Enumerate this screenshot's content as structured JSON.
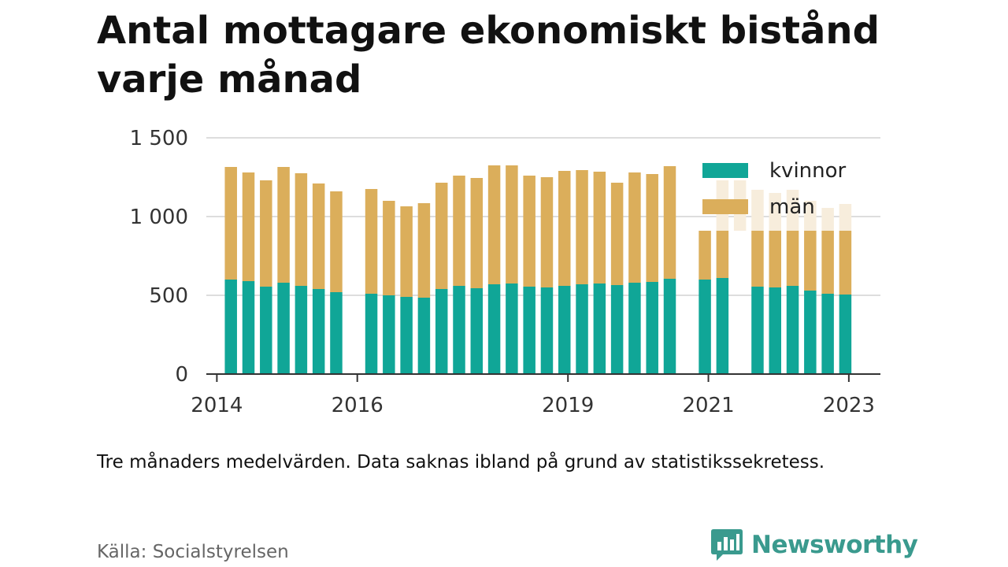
{
  "title": "Antal mottagare ekonomiskt bistånd varje månad",
  "note": "Tre månaders medelvärden. Data saknas ibland på grund av statistikssekretess.",
  "source": "Källa: Socialstyrelsen",
  "logo": {
    "text": "Newsworthy",
    "icon": "newsworthy-chat-bars-icon"
  },
  "colors": {
    "kvinnor": "#10a697",
    "man": "#dbae5b",
    "man_faded": "#f7eddc",
    "grid": "#dddddd",
    "axis": "#333333",
    "logo": "#3a9a8e"
  },
  "chart_data": {
    "type": "bar",
    "stacked": true,
    "xlabel": "",
    "ylabel": "",
    "ylim": [
      0,
      1500
    ],
    "yticks": [
      0,
      500,
      1000,
      1500
    ],
    "ytick_labels": [
      "0",
      "500",
      "1 000",
      "1 500"
    ],
    "xticks": [
      {
        "label": "2014",
        "x": 2014.0
      },
      {
        "label": "2016",
        "x": 2016.0
      },
      {
        "label": "2019",
        "x": 2019.0
      },
      {
        "label": "2021",
        "x": 2021.0
      },
      {
        "label": "2023",
        "x": 2023.0
      }
    ],
    "xlim": [
      2013.85,
      2023.45
    ],
    "x": [
      2014.2,
      2014.45,
      2014.7,
      2014.95,
      2015.2,
      2015.45,
      2015.7,
      2016.2,
      2016.45,
      2016.7,
      2016.95,
      2017.2,
      2017.45,
      2017.7,
      2017.95,
      2018.2,
      2018.45,
      2018.7,
      2018.95,
      2019.2,
      2019.45,
      2019.7,
      2019.95,
      2020.2,
      2020.45,
      2020.7,
      2020.95,
      2021.2,
      2021.45,
      2021.7,
      2021.95,
      2022.2,
      2022.45,
      2022.7,
      2022.95
    ],
    "series": [
      {
        "name": "kvinnor",
        "values": [
          600,
          590,
          555,
          580,
          560,
          540,
          520,
          510,
          500,
          490,
          485,
          540,
          560,
          545,
          570,
          575,
          555,
          550,
          560,
          570,
          575,
          565,
          580,
          585,
          605,
          null,
          600,
          610,
          null,
          555,
          550,
          560,
          530,
          510,
          505
        ]
      },
      {
        "name": "män",
        "values": [
          715,
          690,
          675,
          735,
          715,
          670,
          640,
          665,
          600,
          575,
          600,
          675,
          700,
          700,
          755,
          750,
          705,
          700,
          730,
          725,
          710,
          650,
          700,
          685,
          715,
          null,
          null,
          null,
          null,
          null,
          null,
          null,
          null,
          null,
          null
        ]
      }
    ],
    "legend": {
      "entries": [
        "kvinnor",
        "män"
      ],
      "position": "top-right"
    },
    "grid": true
  }
}
